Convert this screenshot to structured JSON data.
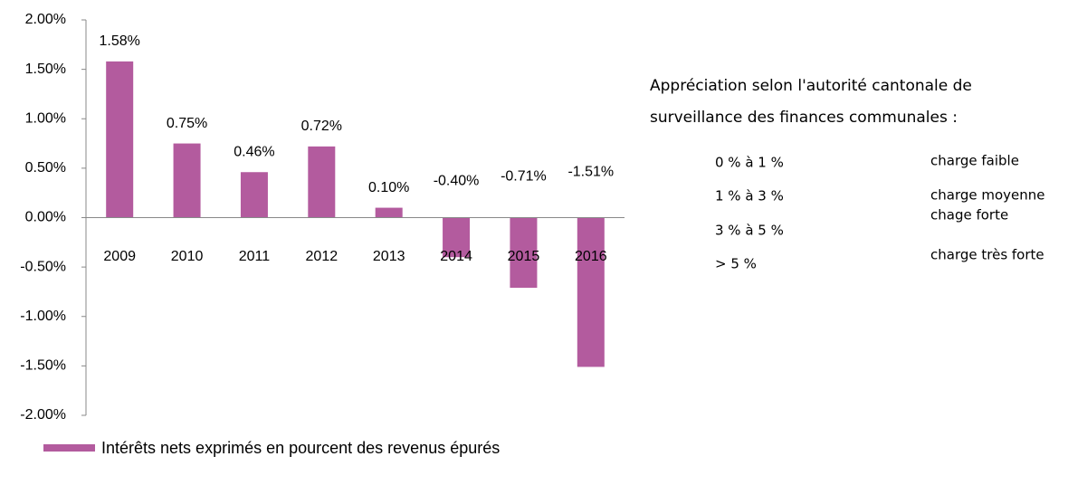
{
  "chart_data": {
    "type": "bar",
    "categories": [
      "2009",
      "2010",
      "2011",
      "2012",
      "2013",
      "2014",
      "2015",
      "2016"
    ],
    "values": [
      1.58,
      0.75,
      0.46,
      0.72,
      0.1,
      -0.4,
      -0.71,
      -1.51
    ],
    "value_labels": [
      "1.58%",
      "0.75%",
      "0.46%",
      "0.72%",
      "0.10%",
      "-0.40%",
      "-0.71%",
      "-1.51%"
    ],
    "series_name": "Intérêts nets exprimés en pourcent des revenus épurés",
    "color": "#b35b9e",
    "ylim": [
      -2,
      2
    ],
    "yticks": [
      {
        "value": 2,
        "label": "2.00%"
      },
      {
        "value": 1.5,
        "label": "1.50%"
      },
      {
        "value": 1,
        "label": "1.00%"
      },
      {
        "value": 0.5,
        "label": "0.50%"
      },
      {
        "value": 0,
        "label": "0.00%"
      },
      {
        "value": -0.5,
        "label": "-0.50%"
      },
      {
        "value": -1,
        "label": "-1.00%"
      },
      {
        "value": -1.5,
        "label": "-1.50%"
      },
      {
        "value": -2,
        "label": "-2.00%"
      }
    ],
    "legend": "bottom",
    "note": {
      "title": "Appréciation selon l'autorité cantonale de surveillance des finances communales :",
      "ranges": [
        "0 % à 1 %",
        "1 % à 3 %",
        "3 % à 5 %",
        "> 5 %"
      ],
      "levels": [
        "charge faible",
        "charge moyenne",
        "chage forte",
        "charge très forte"
      ]
    }
  }
}
